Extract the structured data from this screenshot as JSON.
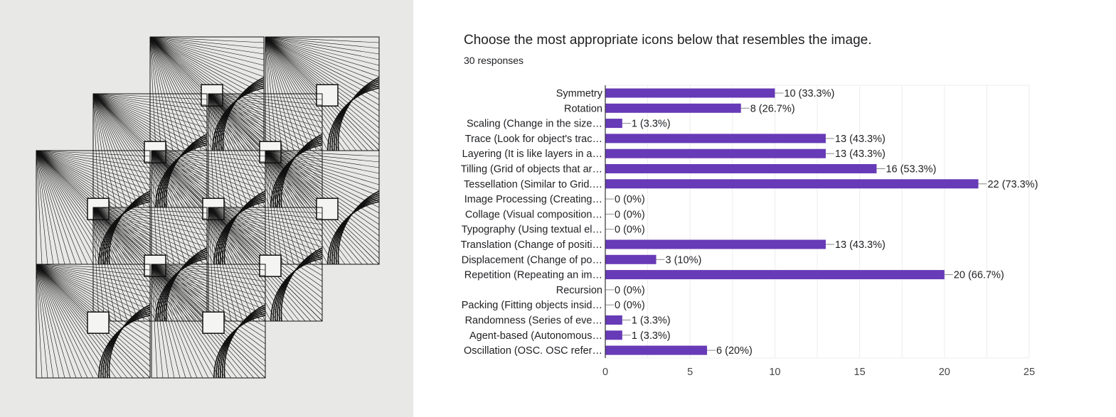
{
  "question": {
    "title": "Choose the most appropriate icons below that resembles the image.",
    "responses": "30 responses"
  },
  "artwork": {
    "icon": "tessellation-line-art"
  },
  "chart_data": {
    "type": "bar",
    "orientation": "horizontal",
    "categories": [
      "Symmetry",
      "Rotation",
      "Scaling (Change in the size…",
      "Trace (Look for object's trac…",
      "Layering (It is like layers in a…",
      "Tilling (Grid of objects that ar…",
      "Tessellation (Similar to Grid.…",
      "Image Processing (Creating…",
      "Collage (Visual composition…",
      "Typography (Using textual el…",
      "Translation (Change of positi…",
      "Displacement (Change of po…",
      "Repetition (Repeating an im…",
      "Recursion",
      "Packing (Fitting objects insid…",
      "Randomness (Series of eve…",
      "Agent-based (Autonomous…",
      "Oscillation (OSC. OSC refer…"
    ],
    "values": [
      10,
      8,
      1,
      13,
      13,
      16,
      22,
      0,
      0,
      0,
      13,
      3,
      20,
      0,
      0,
      1,
      1,
      6
    ],
    "data_labels": [
      "10 (33.3%)",
      "8 (26.7%)",
      "1 (3.3%)",
      "13 (43.3%)",
      "13 (43.3%)",
      "16 (53.3%)",
      "22 (73.3%)",
      "0 (0%)",
      "0 (0%)",
      "0 (0%)",
      "13 (43.3%)",
      "3 (10%)",
      "20 (66.7%)",
      "0 (0%)",
      "0 (0%)",
      "1 (3.3%)",
      "1 (3.3%)",
      "6 (20%)"
    ],
    "xticks": [
      "0",
      "5",
      "10",
      "15",
      "20",
      "25"
    ],
    "xlim": [
      0,
      25
    ],
    "grid": true,
    "bar_color": "#673ab7"
  }
}
